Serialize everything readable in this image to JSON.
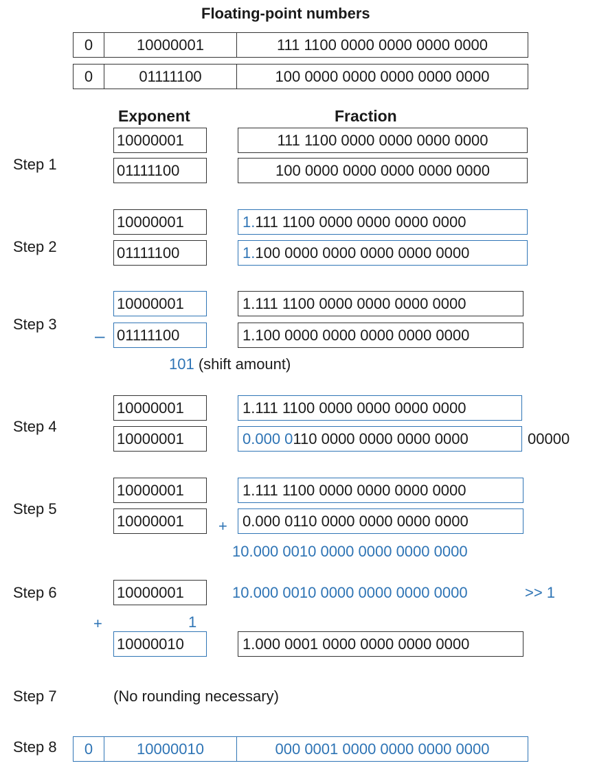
{
  "title": "Floating-point numbers",
  "numbers": [
    {
      "sign": "0",
      "exponent": "10000001",
      "fraction": "111 1100 0000 0000 0000 0000"
    },
    {
      "sign": "0",
      "exponent": "01111100",
      "fraction": "100 0000 0000 0000 0000 0000"
    }
  ],
  "headers": {
    "exponent": "Exponent",
    "fraction": "Fraction"
  },
  "steps": {
    "s1": {
      "label": "Step 1",
      "exp_a": "10000001",
      "exp_b": "01111100",
      "frac_a": "111 1100 0000 0000 0000 0000",
      "frac_b": "100 0000 0000 0000 0000 0000"
    },
    "s2": {
      "label": "Step 2",
      "exp_a": "10000001",
      "exp_b": "01111100",
      "frac_a_prefix": "1.",
      "frac_a": "111 1100 0000 0000 0000 0000",
      "frac_b_prefix": "1.",
      "frac_b": "100 0000 0000 0000 0000 0000"
    },
    "s3": {
      "label": "Step 3",
      "minus": "–",
      "exp_a": "10000001",
      "exp_b": "01111100",
      "frac_a": "1.111 1100 0000 0000 0000 0000",
      "frac_b": "1.100 0000 0000 0000 0000 0000",
      "shift_value": "101",
      "shift_note": "(shift amount)"
    },
    "s4": {
      "label": "Step 4",
      "exp_a": "10000001",
      "exp_b": "10000001",
      "frac_a": "1.111 1100 0000 0000 0000 0000",
      "frac_b_shifted": "0.000 0",
      "frac_b_rest": "110 0000 0000 0000 0000",
      "overflow": "00000"
    },
    "s5": {
      "label": "Step 5",
      "plus": "+",
      "exp_a": "10000001",
      "exp_b": "10000001",
      "frac_a": "1.111 1100 0000 0000 0000 0000",
      "frac_b": "0.000 0110 0000 0000 0000 0000",
      "sum": "10.000 0010 0000 0000 0000 0000"
    },
    "s6": {
      "label": "Step 6",
      "exp": "10000001",
      "frac": "10.000 0010 0000 0000 0000 0000",
      "shift": ">> 1",
      "plus": "+",
      "one": "1",
      "exp_result": "10000010",
      "frac_result": "1.000 0001 0000 0000 0000 0000"
    },
    "s7": {
      "label": "Step 7",
      "note": "(No rounding necessary)"
    },
    "s8": {
      "label": "Step 8",
      "sign": "0",
      "exponent": "10000010",
      "fraction": "000 0001 0000 0000 0000 0000"
    }
  },
  "colors": {
    "accent": "#2e74b5",
    "ink": "#1a1a1a"
  }
}
